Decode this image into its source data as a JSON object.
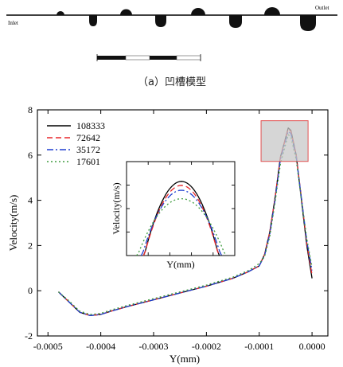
{
  "model": {
    "inlet_label": "Inlet",
    "outlet_label": "Outlet",
    "caption": "（a）凹槽模型"
  },
  "chart_data": {
    "type": "line",
    "xlabel": "Y(mm)",
    "ylabel": "Velocity(m/s)",
    "xlim": [
      -0.00052,
      3e-05
    ],
    "ylim": [
      -2,
      8
    ],
    "xticks": [
      -0.0005,
      -0.0004,
      -0.0003,
      -0.0002,
      -0.0001,
      0.0
    ],
    "xtick_labels": [
      "-0.0005",
      "-0.0004",
      "-0.0003",
      "-0.0002",
      "-0.0001",
      "0.0000"
    ],
    "yticks": [
      -2,
      0,
      2,
      4,
      6,
      8
    ],
    "ytick_labels": [
      "-2",
      "0",
      "2",
      "4",
      "6",
      "8"
    ],
    "legend_position": "top-left",
    "series": [
      {
        "name": "108333",
        "color": "#000000",
        "dash": "solid",
        "x": [
          -0.00048,
          -0.00046,
          -0.00044,
          -0.00042,
          -0.0004,
          -0.00038,
          -0.00035,
          -0.0003,
          -0.00025,
          -0.0002,
          -0.00015,
          -0.00012,
          -0.0001,
          -9e-05,
          -8e-05,
          -7e-05,
          -6e-05,
          -4.5e-05,
          -4e-05,
          -3e-05,
          -2e-05,
          -1e-05,
          0.0
        ],
        "y": [
          -0.05,
          -0.5,
          -0.95,
          -1.1,
          -1.05,
          -0.9,
          -0.7,
          -0.4,
          -0.1,
          0.2,
          0.55,
          0.85,
          1.1,
          1.6,
          2.6,
          4.1,
          5.9,
          7.2,
          7.1,
          6.0,
          4.0,
          2.0,
          0.55
        ]
      },
      {
        "name": "72642",
        "color": "#e8262a",
        "dash": "7,4",
        "x": [
          -0.00048,
          -0.00046,
          -0.00044,
          -0.00042,
          -0.0004,
          -0.00038,
          -0.00035,
          -0.0003,
          -0.00025,
          -0.0002,
          -0.00015,
          -0.00012,
          -0.0001,
          -9e-05,
          -8e-05,
          -7e-05,
          -6e-05,
          -4.5e-05,
          -4e-05,
          -3e-05,
          -2e-05,
          -1e-05,
          0.0
        ],
        "y": [
          -0.05,
          -0.5,
          -0.95,
          -1.1,
          -1.05,
          -0.9,
          -0.7,
          -0.4,
          -0.1,
          0.2,
          0.55,
          0.85,
          1.1,
          1.6,
          2.6,
          4.1,
          5.9,
          7.15,
          7.05,
          6.0,
          4.1,
          2.1,
          0.7
        ]
      },
      {
        "name": "35172",
        "color": "#1f3fd1",
        "dash": "8,3,2,3",
        "x": [
          -0.00048,
          -0.00046,
          -0.00044,
          -0.00042,
          -0.0004,
          -0.00038,
          -0.00035,
          -0.0003,
          -0.00025,
          -0.0002,
          -0.00015,
          -0.00012,
          -0.0001,
          -9e-05,
          -8e-05,
          -7e-05,
          -6e-05,
          -4.5e-05,
          -4e-05,
          -3e-05,
          -2e-05,
          -1e-05,
          0.0
        ],
        "y": [
          -0.05,
          -0.5,
          -0.95,
          -1.1,
          -1.05,
          -0.9,
          -0.7,
          -0.4,
          -0.1,
          0.2,
          0.55,
          0.85,
          1.1,
          1.55,
          2.5,
          4.0,
          5.8,
          7.05,
          6.95,
          5.9,
          4.1,
          2.2,
          0.9
        ]
      },
      {
        "name": "17601",
        "color": "#3f9c3f",
        "dash": "2,3",
        "x": [
          -0.00048,
          -0.00046,
          -0.00044,
          -0.00042,
          -0.0004,
          -0.00038,
          -0.00035,
          -0.0003,
          -0.00025,
          -0.0002,
          -0.00015,
          -0.00012,
          -0.0001,
          -9e-05,
          -8e-05,
          -7e-05,
          -6e-05,
          -4.5e-05,
          -4e-05,
          -3e-05,
          -2e-05,
          -1e-05,
          0.0
        ],
        "y": [
          -0.05,
          -0.45,
          -0.9,
          -1.05,
          -1.0,
          -0.85,
          -0.65,
          -0.35,
          -0.05,
          0.25,
          0.6,
          0.9,
          1.2,
          1.5,
          2.4,
          3.9,
          5.6,
          6.9,
          6.8,
          5.8,
          4.0,
          2.3,
          1.05
        ]
      }
    ],
    "highlight_box": {
      "x": [
        -9.65e-05,
        -7.5e-06
      ],
      "y": [
        5.72,
        7.52
      ]
    },
    "inset": {
      "xlabel": "Y(mm)",
      "ylabel": "Velocity(m/s)",
      "xlim": [
        -8e-05,
        -1e-05
      ],
      "ylim": [
        5.7,
        7.6
      ],
      "series_peaks": [
        7.2,
        7.12,
        7.02,
        6.85
      ],
      "series_widths": [
        2.45e-05,
        2.45e-05,
        2.6e-05,
        2.9e-05
      ]
    }
  }
}
